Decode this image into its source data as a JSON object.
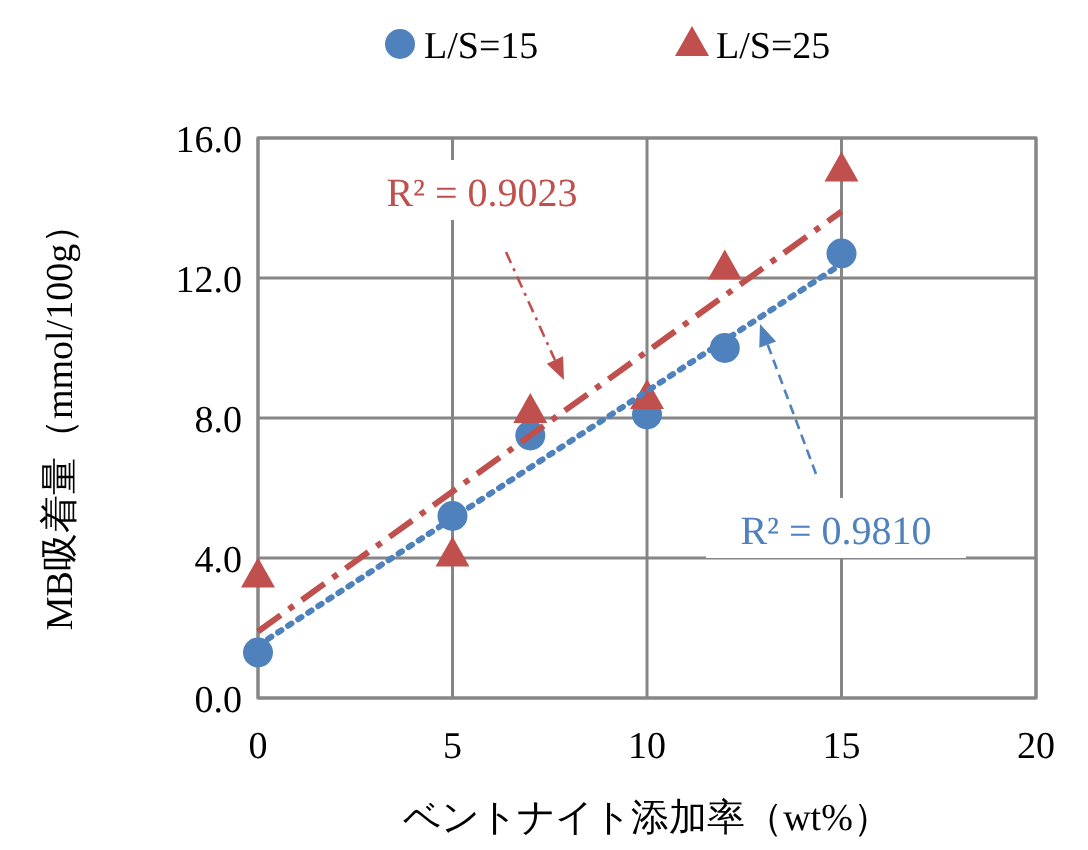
{
  "chart_data": {
    "type": "scatter",
    "xlabel": "ベントナイト添加率（wt%）",
    "ylabel": "MB吸着量（mmol/100g）",
    "xlim": [
      0,
      20
    ],
    "xticks": [
      0,
      5,
      10,
      15,
      20
    ],
    "ylim": [
      0,
      16
    ],
    "yticks": [
      {
        "value": 0,
        "label": "0.0"
      },
      {
        "value": 4,
        "label": "4.0"
      },
      {
        "value": 8,
        "label": "8.0"
      },
      {
        "value": 12,
        "label": "12.0"
      },
      {
        "value": 16,
        "label": "16.0"
      }
    ],
    "grid": true,
    "legend": "top",
    "series": [
      {
        "name": "L/S=15",
        "type": "scatter",
        "marker": "circle",
        "color": "#4f81bd",
        "x": [
          0,
          5,
          7,
          10,
          12,
          15
        ],
        "values": [
          1.3,
          5.2,
          7.5,
          8.1,
          10.0,
          12.7
        ]
      },
      {
        "name": "L/S=25",
        "type": "scatter",
        "marker": "triangle",
        "color": "#c0504d",
        "x": [
          0,
          5,
          7,
          10,
          12,
          15
        ],
        "values": [
          3.5,
          4.1,
          8.2,
          8.6,
          12.3,
          15.1
        ]
      },
      {
        "type": "line",
        "marker": "none",
        "line_style": "dashed",
        "color": "#c0504d",
        "x": [
          0,
          15
        ],
        "values": [
          1.9,
          13.9
        ]
      },
      {
        "type": "line",
        "marker": "none",
        "line_style": "dotted",
        "color": "#4f81bd",
        "x": [
          0,
          15
        ],
        "values": [
          1.5,
          12.4
        ]
      }
    ],
    "annotations": [
      "R² = 0.9023",
      "R² = 0.9810"
    ]
  }
}
